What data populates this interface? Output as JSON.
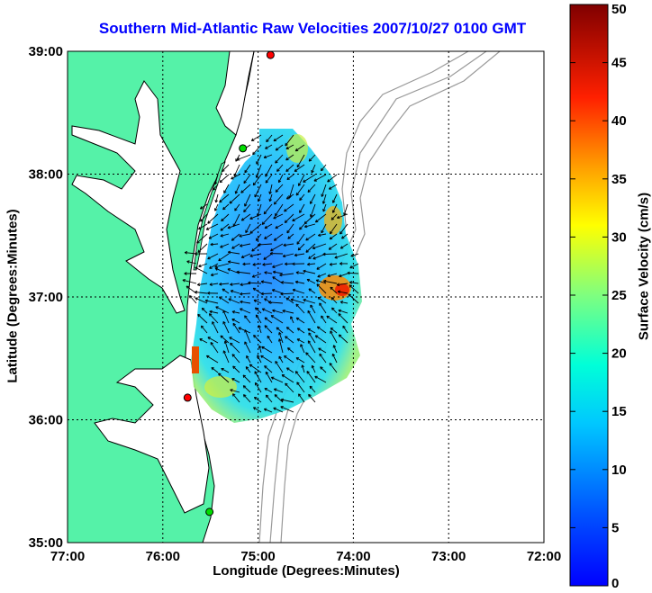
{
  "map": {
    "title": "Southern Mid-Atlantic Raw Velocities 2007/10/27 0100 GMT",
    "xlabel": "Longitude (Degrees:Minutes)",
    "ylabel": "Latitude (Degrees:Minutes)",
    "x_ticks": [
      "77:00",
      "76:00",
      "75:00",
      "74:00",
      "73:00",
      "72:00"
    ],
    "y_ticks": [
      "39:00",
      "38:00",
      "37:00",
      "36:00",
      "35:00"
    ],
    "lon_range": [
      -77,
      -72
    ],
    "lat_range": [
      35,
      39
    ],
    "grid": true,
    "land_color": "#55f2a8",
    "coastline_color": "#000000",
    "bathymetry_color": "#999999",
    "stations": [
      {
        "lon": -74.87,
        "lat": 38.97,
        "color": "#ff0000"
      },
      {
        "lon": -75.16,
        "lat": 38.21,
        "color": "#00dd00"
      },
      {
        "lon": -75.74,
        "lat": 36.18,
        "color": "#ff0000"
      },
      {
        "lon": -75.51,
        "lat": 35.25,
        "color": "#00dd00"
      }
    ]
  },
  "colorbar": {
    "label": "Surface Velocity (cm/s)",
    "ticks": [
      "0",
      "5",
      "10",
      "15",
      "20",
      "25",
      "30",
      "35",
      "40",
      "45",
      "50"
    ],
    "min": 0,
    "max": 50,
    "colormap": "jet"
  }
}
